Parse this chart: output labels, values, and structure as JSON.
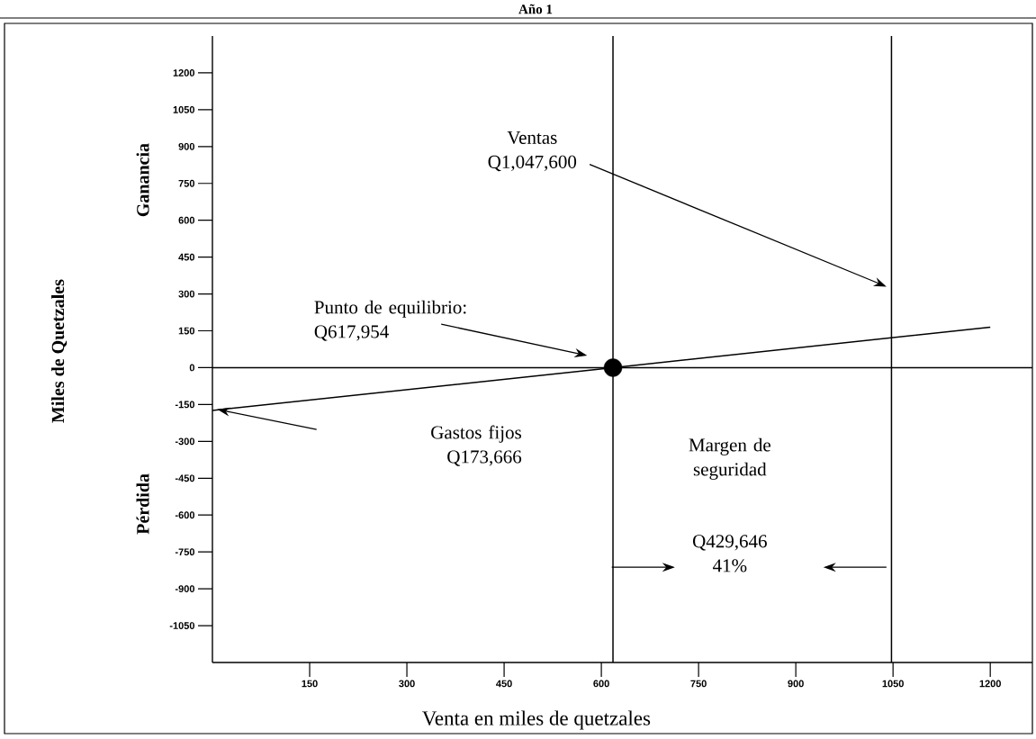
{
  "chart_data": {
    "type": "line",
    "title": "Año 1",
    "xlabel": "Venta en miles de quetzales",
    "xlim": [
      0,
      1265
    ],
    "ylim": [
      -1200,
      1350
    ],
    "xticks": [
      150,
      300,
      450,
      600,
      750,
      900,
      1050,
      1200
    ],
    "yticks": [
      -1050,
      -900,
      -750,
      -600,
      -450,
      -300,
      -150,
      0,
      150,
      300,
      450,
      600,
      750,
      900,
      1050,
      1200
    ],
    "grid": false,
    "series": [
      {
        "color": "#000000",
        "x": [
          0,
          617.954,
          1200
        ],
        "values": [
          -174,
          0,
          165
        ]
      },
      {
        "type": "scatter",
        "color": "#000000",
        "marker": "circle",
        "x": [
          617.954
        ],
        "values": [
          0
        ]
      }
    ],
    "ref_lines": [
      {
        "axis": "x",
        "value": 617.954
      },
      {
        "axis": "x",
        "value": 1047.6
      },
      {
        "axis": "y",
        "value": 0
      }
    ],
    "annotations": [
      "Miles de Quetzales",
      "Ganancia",
      "Pérdida",
      "Punto de equilibrio: Q617,954",
      "Ventas Q1,047,600",
      "Gastos fijos Q173,666",
      "Margen de seguridad",
      "Q429,646 41%"
    ]
  }
}
